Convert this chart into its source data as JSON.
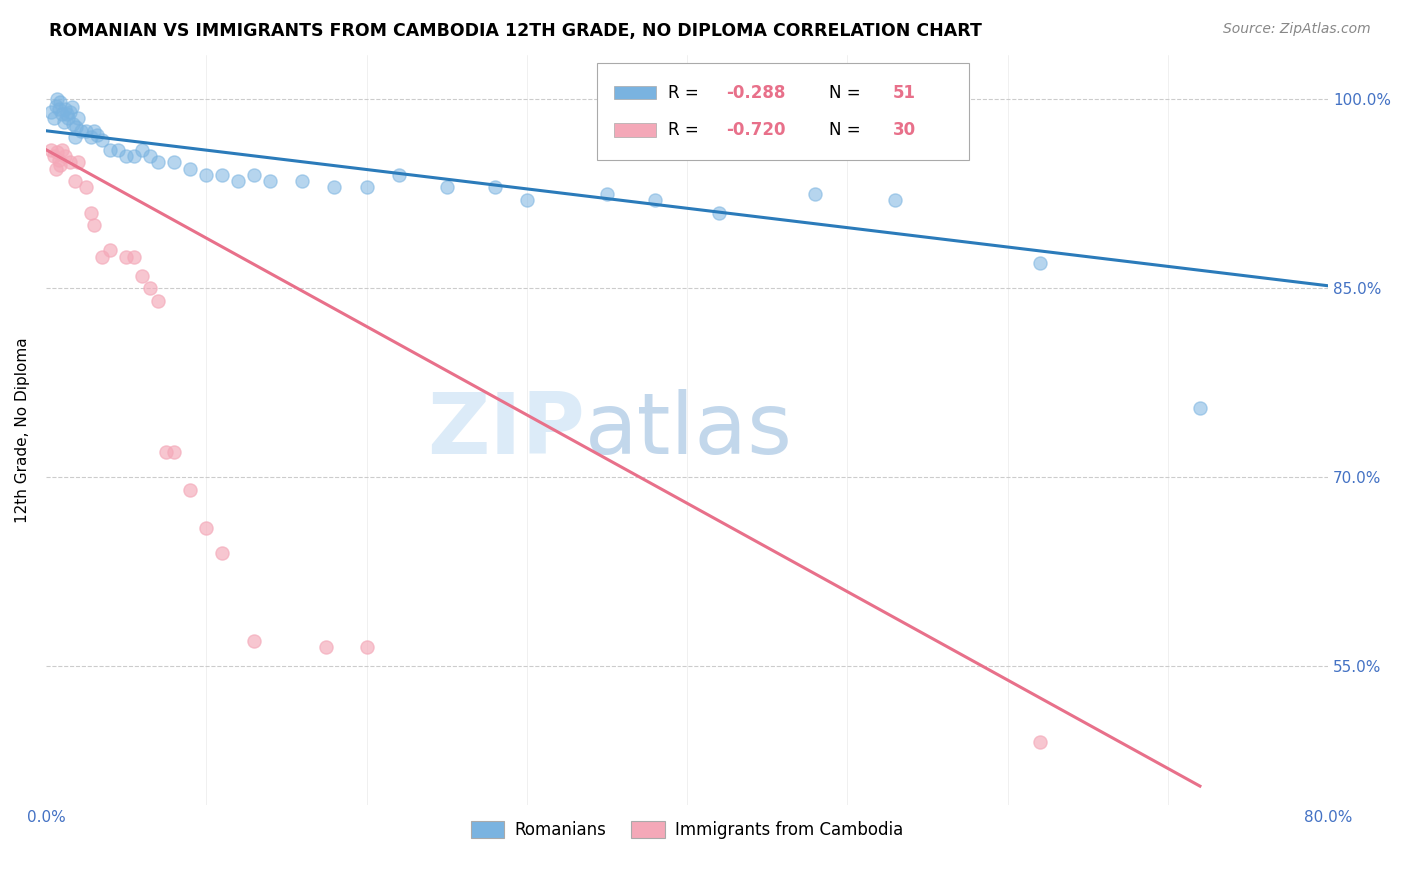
{
  "title": "ROMANIAN VS IMMIGRANTS FROM CAMBODIA 12TH GRADE, NO DIPLOMA CORRELATION CHART",
  "source": "Source: ZipAtlas.com",
  "ylabel": "12th Grade, No Diploma",
  "ytick_labels": [
    "100.0%",
    "85.0%",
    "70.0%",
    "55.0%"
  ],
  "ytick_values": [
    1.0,
    0.85,
    0.7,
    0.55
  ],
  "xlim": [
    0.0,
    0.8
  ],
  "ylim": [
    0.44,
    1.035
  ],
  "blue_color": "#7AB3E0",
  "pink_color": "#F4A8B8",
  "blue_line_color": "#2B7BBA",
  "pink_line_color": "#E8708A",
  "legend_blue_label": "Romanians",
  "legend_pink_label": "Immigrants from Cambodia",
  "legend_r1": "R = ",
  "legend_r1_val": "-0.288",
  "legend_n1": "N = ",
  "legend_n1_val": "51",
  "legend_r2": "R = ",
  "legend_r2_val": "-0.720",
  "legend_n2": "N = ",
  "legend_n2_val": "30",
  "watermark_zip": "ZIP",
  "watermark_atlas": "atlas",
  "blue_scatter_x": [
    0.003,
    0.005,
    0.006,
    0.007,
    0.008,
    0.009,
    0.01,
    0.011,
    0.012,
    0.013,
    0.014,
    0.015,
    0.016,
    0.017,
    0.018,
    0.019,
    0.02,
    0.022,
    0.025,
    0.028,
    0.03,
    0.032,
    0.035,
    0.04,
    0.045,
    0.05,
    0.055,
    0.06,
    0.065,
    0.07,
    0.08,
    0.09,
    0.1,
    0.11,
    0.12,
    0.13,
    0.14,
    0.16,
    0.18,
    0.2,
    0.22,
    0.25,
    0.28,
    0.3,
    0.35,
    0.38,
    0.42,
    0.48,
    0.53,
    0.62,
    0.72
  ],
  "blue_scatter_y": [
    0.99,
    0.985,
    0.995,
    1.0,
    0.992,
    0.998,
    0.988,
    0.982,
    0.992,
    0.988,
    0.985,
    0.99,
    0.994,
    0.98,
    0.97,
    0.978,
    0.985,
    0.975,
    0.975,
    0.97,
    0.975,
    0.972,
    0.968,
    0.96,
    0.96,
    0.955,
    0.955,
    0.96,
    0.955,
    0.95,
    0.95,
    0.945,
    0.94,
    0.94,
    0.935,
    0.94,
    0.935,
    0.935,
    0.93,
    0.93,
    0.94,
    0.93,
    0.93,
    0.92,
    0.925,
    0.92,
    0.91,
    0.925,
    0.92,
    0.87,
    0.755
  ],
  "pink_scatter_x": [
    0.003,
    0.005,
    0.006,
    0.007,
    0.008,
    0.009,
    0.01,
    0.012,
    0.015,
    0.018,
    0.02,
    0.025,
    0.028,
    0.03,
    0.035,
    0.04,
    0.05,
    0.055,
    0.06,
    0.065,
    0.07,
    0.075,
    0.08,
    0.09,
    0.1,
    0.11,
    0.13,
    0.175,
    0.2,
    0.62
  ],
  "pink_scatter_y": [
    0.96,
    0.955,
    0.945,
    0.958,
    0.952,
    0.948,
    0.96,
    0.955,
    0.95,
    0.935,
    0.95,
    0.93,
    0.91,
    0.9,
    0.875,
    0.88,
    0.875,
    0.875,
    0.86,
    0.85,
    0.84,
    0.72,
    0.72,
    0.69,
    0.66,
    0.64,
    0.57,
    0.565,
    0.565,
    0.49
  ],
  "blue_line_x": [
    0.0,
    0.8
  ],
  "blue_line_y": [
    0.975,
    0.852
  ],
  "pink_line_x": [
    0.0,
    0.72
  ],
  "pink_line_y": [
    0.96,
    0.455
  ]
}
